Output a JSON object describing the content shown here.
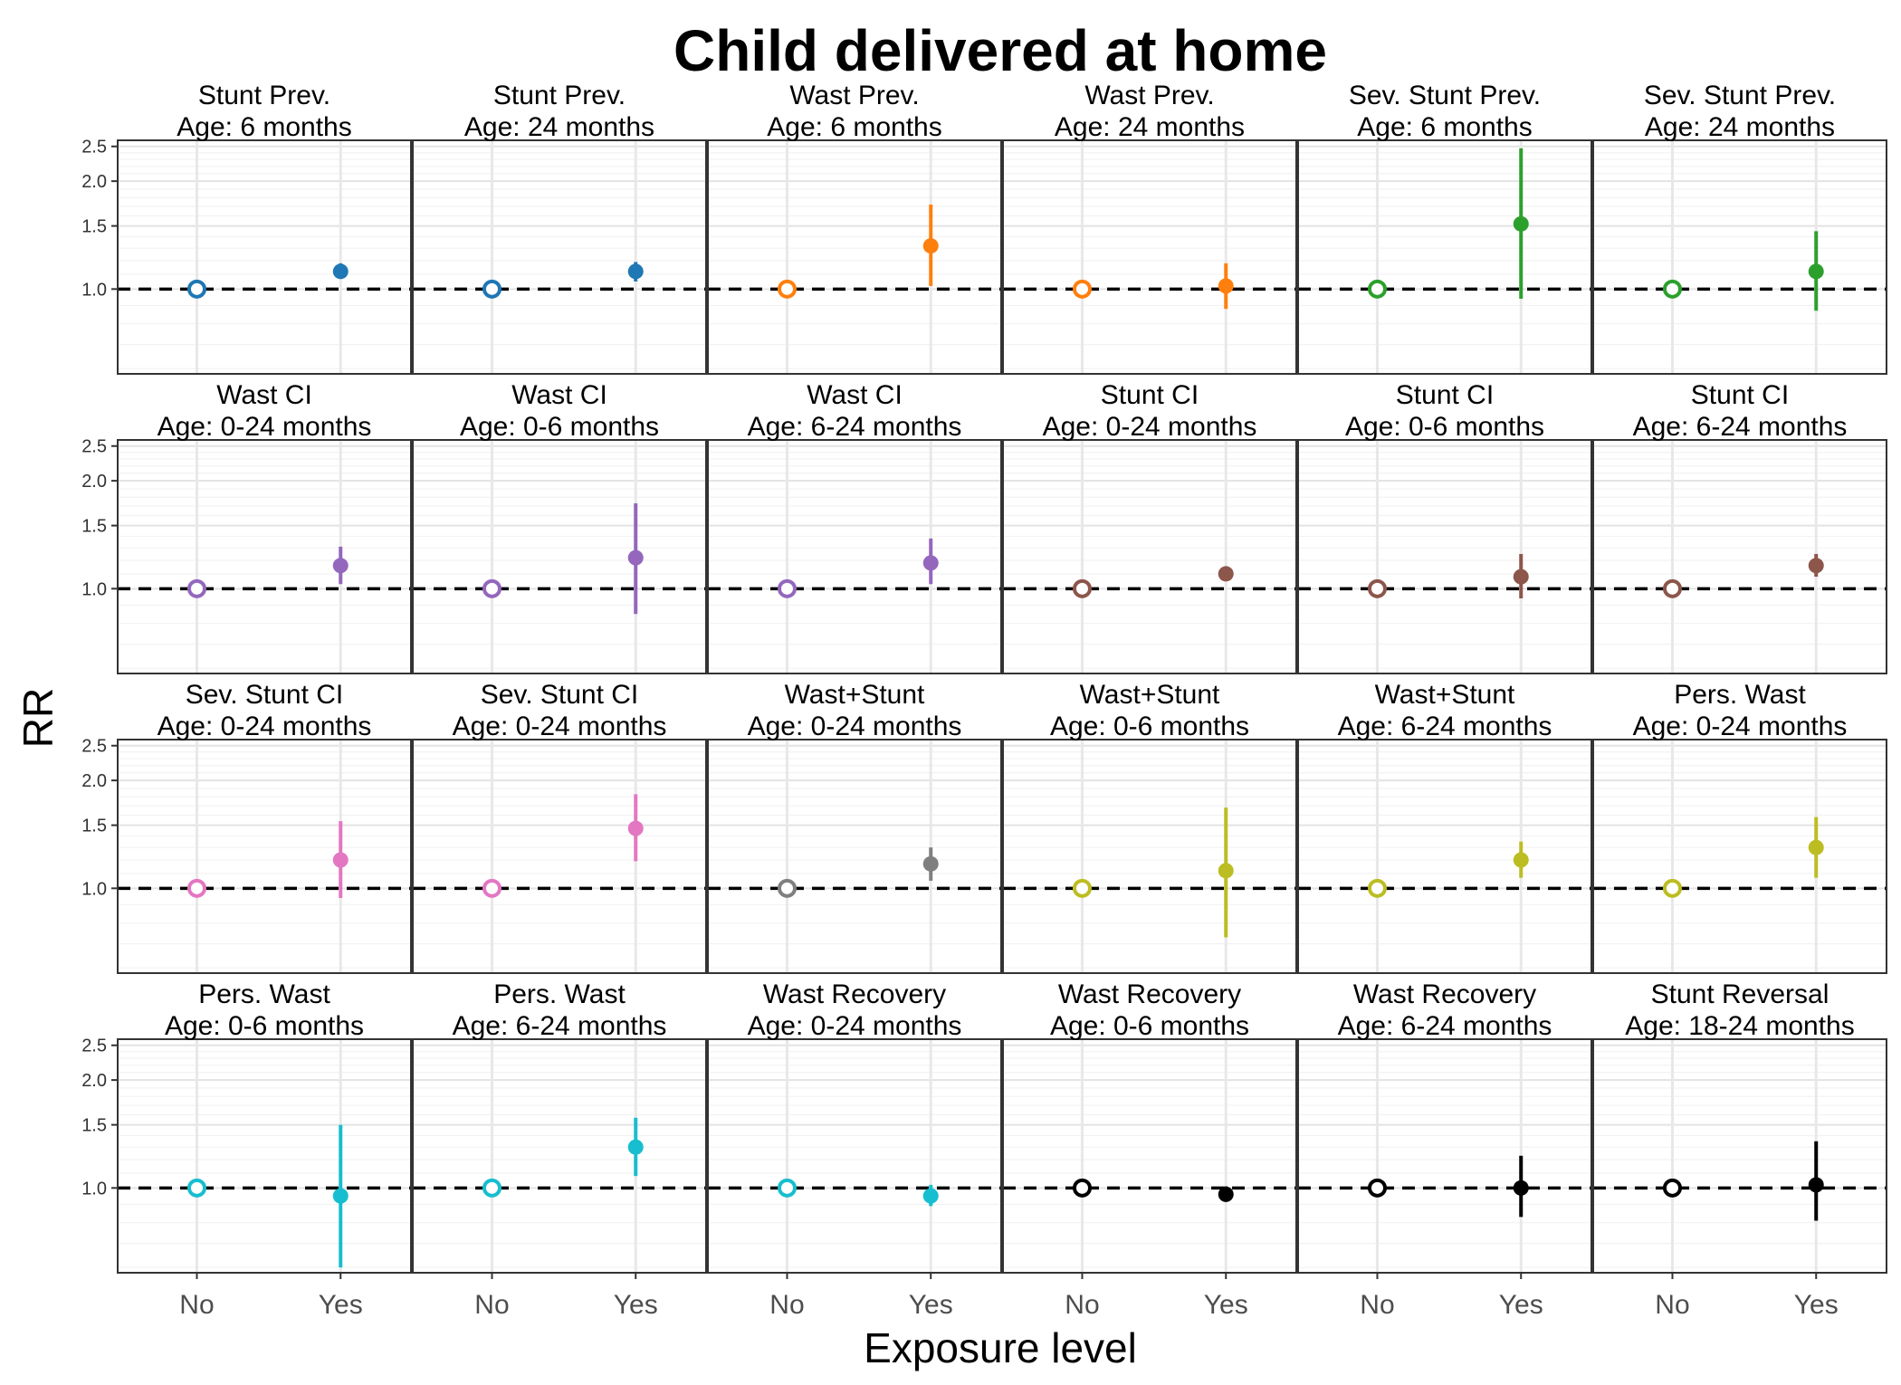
{
  "chart_data": {
    "type": "scatter",
    "title": "Child delivered at home",
    "xlabel": "Exposure level",
    "ylabel": "RR",
    "x_categories": [
      "No",
      "Yes"
    ],
    "y_ticks": [
      "1.0",
      "1.5",
      "2.0",
      "2.5"
    ],
    "y_tick_values": [
      1.0,
      1.5,
      2.0,
      2.5
    ],
    "y_scale": "log",
    "ylim": [
      0.58,
      2.6
    ],
    "reference_line": 1.0,
    "grid": true,
    "reference_marker": "open circle at RR 1.0 for No",
    "panels": [
      {
        "outcome": "Stunt Prev.",
        "age": "Age: 6 months",
        "color": "#1f77b4",
        "rr": 1.12,
        "lower": 1.07,
        "upper": 1.18
      },
      {
        "outcome": "Stunt Prev.",
        "age": "Age: 24 months",
        "color": "#1f77b4",
        "rr": 1.12,
        "lower": 1.05,
        "upper": 1.19
      },
      {
        "outcome": "Wast Prev.",
        "age": "Age: 6 months",
        "color": "#ff7f0e",
        "rr": 1.32,
        "lower": 1.02,
        "upper": 1.72
      },
      {
        "outcome": "Wast Prev.",
        "age": "Age: 24 months",
        "color": "#ff7f0e",
        "rr": 1.02,
        "lower": 0.88,
        "upper": 1.18
      },
      {
        "outcome": "Sev. Stunt Prev.",
        "age": "Age: 6 months",
        "color": "#2ca02c",
        "rr": 1.52,
        "lower": 0.94,
        "upper": 2.47
      },
      {
        "outcome": "Sev. Stunt Prev.",
        "age": "Age: 24 months",
        "color": "#2ca02c",
        "rr": 1.12,
        "lower": 0.87,
        "upper": 1.45
      },
      {
        "outcome": "Wast CI",
        "age": "Age: 0-24 months",
        "color": "#9467bd",
        "rr": 1.16,
        "lower": 1.03,
        "upper": 1.31
      },
      {
        "outcome": "Wast CI",
        "age": "Age: 0-6 months",
        "color": "#9467bd",
        "rr": 1.22,
        "lower": 0.85,
        "upper": 1.73
      },
      {
        "outcome": "Wast CI",
        "age": "Age: 6-24 months",
        "color": "#9467bd",
        "rr": 1.18,
        "lower": 1.03,
        "upper": 1.38
      },
      {
        "outcome": "Stunt CI",
        "age": "Age: 0-24 months",
        "color": "#8c564b",
        "rr": 1.1,
        "lower": 1.06,
        "upper": 1.13
      },
      {
        "outcome": "Stunt CI",
        "age": "Age: 0-6 months",
        "color": "#8c564b",
        "rr": 1.08,
        "lower": 0.94,
        "upper": 1.25
      },
      {
        "outcome": "Stunt CI",
        "age": "Age: 6-24 months",
        "color": "#8c564b",
        "rr": 1.16,
        "lower": 1.08,
        "upper": 1.25
      },
      {
        "outcome": "Sev. Stunt CI",
        "age": "Age: 0-24 months",
        "color": "#e377c2",
        "rr": 1.2,
        "lower": 0.94,
        "upper": 1.54
      },
      {
        "outcome": "Sev. Stunt CI",
        "age": "Age: 0-24 months",
        "color": "#e377c2",
        "rr": 1.47,
        "lower": 1.19,
        "upper": 1.83
      },
      {
        "outcome": "Wast+Stunt",
        "age": "Age: 0-24 months",
        "color": "#7f7f7f",
        "rr": 1.17,
        "lower": 1.05,
        "upper": 1.3
      },
      {
        "outcome": "Wast+Stunt",
        "age": "Age: 0-6 months",
        "color": "#bcbd22",
        "rr": 1.12,
        "lower": 0.73,
        "upper": 1.68
      },
      {
        "outcome": "Wast+Stunt",
        "age": "Age: 6-24 months",
        "color": "#bcbd22",
        "rr": 1.2,
        "lower": 1.07,
        "upper": 1.35
      },
      {
        "outcome": "Pers. Wast",
        "age": "Age: 0-24 months",
        "color": "#bcbd22",
        "rr": 1.3,
        "lower": 1.07,
        "upper": 1.58
      },
      {
        "outcome": "Pers. Wast",
        "age": "Age: 0-6 months",
        "color": "#17becf",
        "rr": 0.95,
        "lower": 0.6,
        "upper": 1.5
      },
      {
        "outcome": "Pers. Wast",
        "age": "Age: 6-24 months",
        "color": "#17becf",
        "rr": 1.3,
        "lower": 1.08,
        "upper": 1.57
      },
      {
        "outcome": "Wast Recovery",
        "age": "Age: 0-24 months",
        "color": "#17becf",
        "rr": 0.95,
        "lower": 0.89,
        "upper": 1.02
      },
      {
        "outcome": "Wast Recovery",
        "age": "Age: 0-6 months",
        "color": "#000000",
        "rr": 0.96,
        "lower": 0.92,
        "upper": 1.01
      },
      {
        "outcome": "Wast Recovery",
        "age": "Age: 6-24 months",
        "color": "#000000",
        "rr": 1.0,
        "lower": 0.83,
        "upper": 1.23
      },
      {
        "outcome": "Stunt Reversal",
        "age": "Age: 18-24 months",
        "color": "#000000",
        "rr": 1.02,
        "lower": 0.81,
        "upper": 1.35
      }
    ]
  }
}
